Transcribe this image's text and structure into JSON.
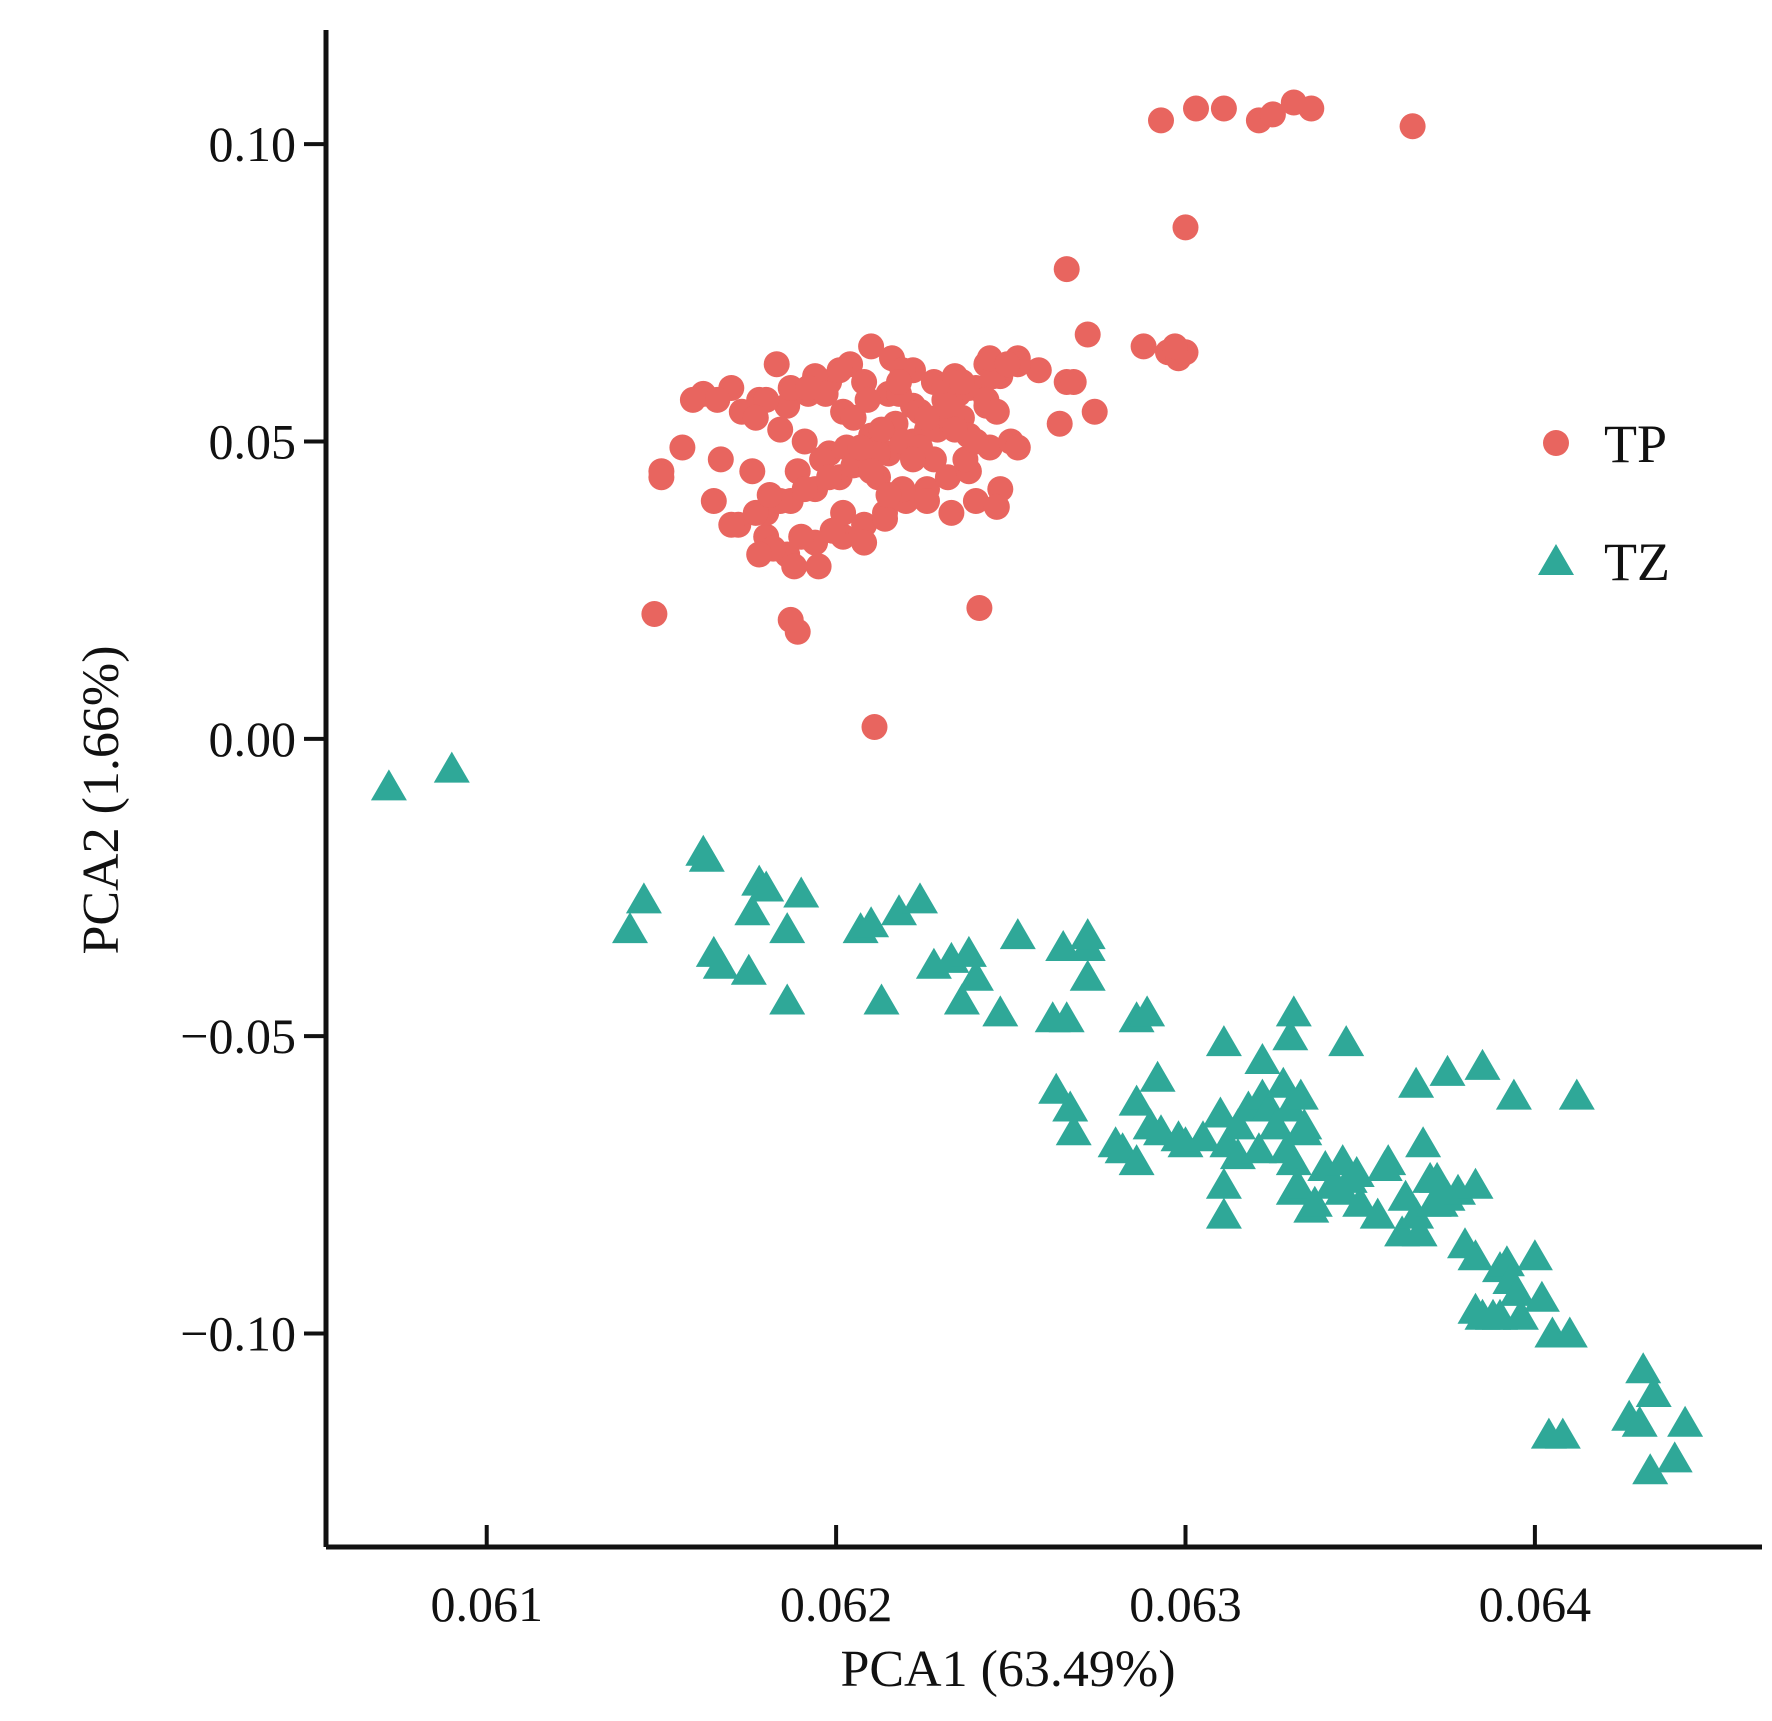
{
  "chart_data": {
    "type": "scatter",
    "title": "",
    "xlabel": "PCA1 (63.49%)",
    "ylabel": "PCA2 (1.66%)",
    "xlim": [
      0.06054,
      0.06465
    ],
    "ylim": [
      -0.1359,
      0.1192
    ],
    "xticks": [
      {
        "value": 0.061,
        "label": "0.061"
      },
      {
        "value": 0.062,
        "label": "0.062"
      },
      {
        "value": 0.063,
        "label": "0.063"
      },
      {
        "value": 0.064,
        "label": "0.064"
      }
    ],
    "yticks": [
      {
        "value": 0.1,
        "label": "0.10"
      },
      {
        "value": 0.05,
        "label": "0.05"
      },
      {
        "value": 0.0,
        "label": "0.00"
      },
      {
        "value": -0.05,
        "label": "−0.05"
      },
      {
        "value": -0.1,
        "label": "−0.10"
      }
    ],
    "grid": false,
    "legend_position": "right",
    "series": [
      {
        "name": "TP",
        "marker": "circle",
        "color": "#E8655F",
        "x": [
          0.06293,
          0.06303,
          0.06311,
          0.06321,
          0.06325,
          0.06331,
          0.06336,
          0.06365,
          0.063,
          0.06266,
          0.06272,
          0.06266,
          0.06288,
          0.06295,
          0.06298,
          0.063,
          0.06297,
          0.06264,
          0.06268,
          0.06274,
          0.06258,
          0.06252,
          0.06243,
          0.06247,
          0.0624,
          0.06235,
          0.06228,
          0.06222,
          0.06216,
          0.0621,
          0.06204,
          0.06198,
          0.06192,
          0.06186,
          0.06178,
          0.0617,
          0.06162,
          0.06156,
          0.0615,
          0.06165,
          0.06172,
          0.0618,
          0.06186,
          0.06195,
          0.06202,
          0.06208,
          0.06214,
          0.0622,
          0.06226,
          0.06232,
          0.06238,
          0.06244,
          0.0625,
          0.06236,
          0.06229,
          0.06222,
          0.06215,
          0.06208,
          0.06201,
          0.06194,
          0.06187,
          0.0618,
          0.06173,
          0.06166,
          0.06177,
          0.06184,
          0.06191,
          0.06198,
          0.06205,
          0.06212,
          0.06219,
          0.06226,
          0.06233,
          0.0624,
          0.06247,
          0.06189,
          0.06196,
          0.06203,
          0.0621,
          0.06217,
          0.06224,
          0.06231,
          0.06238,
          0.06245,
          0.06252,
          0.0618,
          0.06187,
          0.06194,
          0.06201,
          0.06208,
          0.06215,
          0.06222,
          0.06229,
          0.06236,
          0.06243,
          0.0617,
          0.06177,
          0.06184,
          0.06191,
          0.06198,
          0.06205,
          0.06212,
          0.06219,
          0.06226,
          0.06233,
          0.06148,
          0.0615,
          0.06167,
          0.06159,
          0.06241,
          0.06189,
          0.06187,
          0.06211,
          0.06246,
          0.06237,
          0.06197,
          0.06183,
          0.06202,
          0.06219,
          0.06231,
          0.06244,
          0.06213,
          0.06207,
          0.06228,
          0.06176,
          0.06181,
          0.06214,
          0.062,
          0.06194,
          0.06224,
          0.06238,
          0.06192,
          0.06205,
          0.06218,
          0.06226,
          0.0624,
          0.06209,
          0.06218,
          0.06182,
          0.0619,
          0.06232,
          0.06234,
          0.06222,
          0.06215,
          0.06202,
          0.0621,
          0.06234,
          0.06243,
          0.06249,
          0.06199,
          0.06208,
          0.06178,
          0.06188,
          0.06252,
          0.06246,
          0.06236
        ],
        "y": [
          0.104,
          0.106,
          0.106,
          0.104,
          0.105,
          0.107,
          0.106,
          0.103,
          0.086,
          0.079,
          0.068,
          0.06,
          0.066,
          0.065,
          0.064,
          0.065,
          0.066,
          0.053,
          0.06,
          0.055,
          0.062,
          0.064,
          0.063,
          0.061,
          0.059,
          0.058,
          0.06,
          0.062,
          0.064,
          0.066,
          0.063,
          0.06,
          0.058,
          0.056,
          0.057,
          0.059,
          0.058,
          0.049,
          0.045,
          0.04,
          0.036,
          0.034,
          0.031,
          0.029,
          0.034,
          0.036,
          0.038,
          0.04,
          0.042,
          0.044,
          0.045,
          0.049,
          0.05,
          0.052,
          0.054,
          0.056,
          0.058,
          0.06,
          0.062,
          0.061,
          0.059,
          0.057,
          0.055,
          0.057,
          0.054,
          0.052,
          0.05,
          0.048,
          0.046,
          0.044,
          0.042,
          0.04,
          0.038,
          0.04,
          0.042,
          0.045,
          0.047,
          0.049,
          0.051,
          0.053,
          0.055,
          0.057,
          0.059,
          0.061,
          0.063,
          0.038,
          0.04,
          0.042,
          0.044,
          0.046,
          0.048,
          0.05,
          0.052,
          0.054,
          0.056,
          0.036,
          0.038,
          0.04,
          0.042,
          0.044,
          0.046,
          0.048,
          0.05,
          0.052,
          0.054,
          0.021,
          0.044,
          0.047,
          0.057,
          0.022,
          0.018,
          0.02,
          0.002,
          0.039,
          0.047,
          0.058,
          0.063,
          0.055,
          0.062,
          0.059,
          0.064,
          0.052,
          0.049,
          0.047,
          0.045,
          0.041,
          0.037,
          0.035,
          0.033,
          0.049,
          0.051,
          0.059,
          0.054,
          0.058,
          0.054,
          0.05,
          0.057,
          0.06,
          0.032,
          0.034,
          0.056,
          0.052,
          0.047,
          0.041,
          0.038,
          0.045,
          0.061,
          0.057,
          0.063,
          0.035,
          0.033,
          0.031,
          0.029,
          0.049,
          0.055,
          0.06
        ]
      },
      {
        "name": "TZ",
        "marker": "triangle",
        "color": "#2FA898",
        "x": [
          0.06072,
          0.0609,
          0.06162,
          0.06163,
          0.06178,
          0.0618,
          0.0619,
          0.06176,
          0.06186,
          0.06186,
          0.06145,
          0.06141,
          0.06165,
          0.06167,
          0.06175,
          0.06207,
          0.06213,
          0.06218,
          0.0621,
          0.06224,
          0.06228,
          0.06233,
          0.06238,
          0.0624,
          0.06236,
          0.06247,
          0.06252,
          0.06262,
          0.06265,
          0.06266,
          0.06272,
          0.06272,
          0.06272,
          0.06286,
          0.06289,
          0.06263,
          0.06267,
          0.06268,
          0.0628,
          0.06282,
          0.06286,
          0.0629,
          0.06286,
          0.06293,
          0.06292,
          0.06298,
          0.063,
          0.06305,
          0.0631,
          0.06312,
          0.06315,
          0.06311,
          0.06315,
          0.06318,
          0.06322,
          0.06322,
          0.06324,
          0.06326,
          0.06328,
          0.0633,
          0.0633,
          0.06331,
          0.06333,
          0.06334,
          0.06329,
          0.06331,
          0.06331,
          0.06332,
          0.06334,
          0.0634,
          0.06342,
          0.06345,
          0.06347,
          0.06345,
          0.06349,
          0.0635,
          0.06355,
          0.06358,
          0.06362,
          0.06363,
          0.06366,
          0.06366,
          0.0637,
          0.06372,
          0.06373,
          0.06375,
          0.06378,
          0.0638,
          0.06383,
          0.06383,
          0.06385,
          0.06388,
          0.0639,
          0.06392,
          0.06393,
          0.06395,
          0.06396,
          0.064,
          0.06402,
          0.06405,
          0.0641,
          0.06412,
          0.06385,
          0.06346,
          0.06375,
          0.06311,
          0.06336,
          0.06321,
          0.06367,
          0.06337,
          0.06357,
          0.06311,
          0.06383,
          0.06394,
          0.06431,
          0.06434,
          0.06427,
          0.0643,
          0.06433,
          0.0644,
          0.06443,
          0.06408,
          0.06404,
          0.06368,
          0.06371,
          0.0639
        ],
        "y": [
          -0.008,
          -0.005,
          -0.019,
          -0.02,
          -0.024,
          -0.025,
          -0.026,
          -0.029,
          -0.032,
          -0.044,
          -0.027,
          -0.032,
          -0.036,
          -0.038,
          -0.039,
          -0.032,
          -0.044,
          -0.029,
          -0.031,
          -0.027,
          -0.038,
          -0.037,
          -0.036,
          -0.04,
          -0.044,
          -0.046,
          -0.033,
          -0.047,
          -0.035,
          -0.047,
          -0.035,
          -0.033,
          -0.04,
          -0.047,
          -0.046,
          -0.059,
          -0.062,
          -0.066,
          -0.068,
          -0.069,
          -0.061,
          -0.065,
          -0.071,
          -0.066,
          -0.057,
          -0.067,
          -0.068,
          -0.067,
          -0.063,
          -0.068,
          -0.07,
          -0.051,
          -0.065,
          -0.062,
          -0.06,
          -0.054,
          -0.062,
          -0.065,
          -0.058,
          -0.062,
          -0.05,
          -0.046,
          -0.06,
          -0.065,
          -0.069,
          -0.071,
          -0.076,
          -0.075,
          -0.066,
          -0.072,
          -0.075,
          -0.071,
          -0.074,
          -0.076,
          -0.073,
          -0.078,
          -0.08,
          -0.071,
          -0.083,
          -0.077,
          -0.08,
          -0.058,
          -0.074,
          -0.074,
          -0.078,
          -0.077,
          -0.076,
          -0.085,
          -0.087,
          -0.096,
          -0.097,
          -0.097,
          -0.089,
          -0.088,
          -0.091,
          -0.093,
          -0.097,
          -0.087,
          -0.094,
          -0.1,
          -0.1,
          -0.06,
          -0.055,
          -0.051,
          -0.056,
          -0.08,
          -0.079,
          -0.069,
          -0.083,
          -0.078,
          -0.072,
          -0.075,
          -0.075,
          -0.06,
          -0.106,
          -0.11,
          -0.114,
          -0.115,
          -0.123,
          -0.121,
          -0.115,
          -0.117,
          -0.117,
          -0.068,
          -0.078,
          -0.097
        ]
      }
    ]
  }
}
